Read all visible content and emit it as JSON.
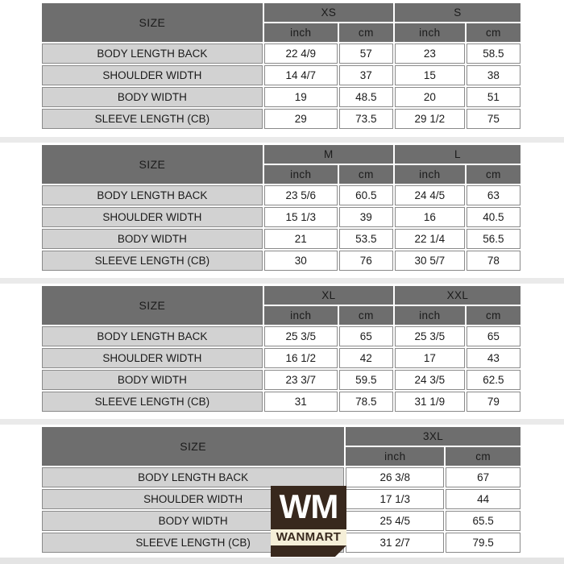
{
  "colors": {
    "header_bg": "#6e6e6e",
    "label_bg": "#d2d2d2",
    "cell_border": "#8a8a8a",
    "logo_brown": "#38281d",
    "logo_cream": "#f5efd8"
  },
  "logo": {
    "monogram": "WM",
    "brand": "WANMART"
  },
  "tables": [
    {
      "size_label": "SIZE",
      "groups": [
        "XS",
        "S"
      ],
      "units": [
        "inch",
        "cm",
        "inch",
        "cm"
      ],
      "rows": [
        {
          "label": "BODY LENGTH BACK",
          "values": [
            "22 4/9",
            "57",
            "23",
            "58.5"
          ]
        },
        {
          "label": "SHOULDER WIDTH",
          "values": [
            "14 4/7",
            "37",
            "15",
            "38"
          ]
        },
        {
          "label": "BODY WIDTH",
          "values": [
            "19",
            "48.5",
            "20",
            "51"
          ]
        },
        {
          "label": "SLEEVE LENGTH (CB)",
          "values": [
            "29",
            "73.5",
            "29 1/2",
            "75"
          ]
        }
      ]
    },
    {
      "size_label": "SIZE",
      "groups": [
        "M",
        "L"
      ],
      "units": [
        "inch",
        "cm",
        "inch",
        "cm"
      ],
      "rows": [
        {
          "label": "BODY LENGTH BACK",
          "values": [
            "23 5/6",
            "60.5",
            "24 4/5",
            "63"
          ]
        },
        {
          "label": "SHOULDER WIDTH",
          "values": [
            "15 1/3",
            "39",
            "16",
            "40.5"
          ]
        },
        {
          "label": "BODY WIDTH",
          "values": [
            "21",
            "53.5",
            "22 1/4",
            "56.5"
          ]
        },
        {
          "label": "SLEEVE LENGTH (CB)",
          "values": [
            "30",
            "76",
            "30 5/7",
            "78"
          ]
        }
      ]
    },
    {
      "size_label": "SIZE",
      "groups": [
        "XL",
        "XXL"
      ],
      "units": [
        "inch",
        "cm",
        "inch",
        "cm"
      ],
      "rows": [
        {
          "label": "BODY LENGTH BACK",
          "values": [
            "25 3/5",
            "65",
            "25 3/5",
            "65"
          ]
        },
        {
          "label": "SHOULDER WIDTH",
          "values": [
            "16 1/2",
            "42",
            "17",
            "43"
          ]
        },
        {
          "label": "BODY WIDTH",
          "values": [
            "23 3/7",
            "59.5",
            "24 3/5",
            "62.5"
          ]
        },
        {
          "label": "SLEEVE LENGTH (CB)",
          "values": [
            "31",
            "78.5",
            "31 1/9",
            "79"
          ]
        }
      ]
    },
    {
      "size_label": "SIZE",
      "groups": [
        "3XL"
      ],
      "units": [
        "inch",
        "cm"
      ],
      "rows": [
        {
          "label": "BODY LENGTH BACK",
          "values": [
            "26 3/8",
            "67"
          ]
        },
        {
          "label": "SHOULDER WIDTH",
          "values": [
            "17 1/3",
            "44"
          ]
        },
        {
          "label": "BODY WIDTH",
          "values": [
            "25 4/5",
            "65.5"
          ]
        },
        {
          "label": "SLEEVE LENGTH (CB)",
          "values": [
            "31 2/7",
            "79.5"
          ]
        }
      ]
    }
  ]
}
